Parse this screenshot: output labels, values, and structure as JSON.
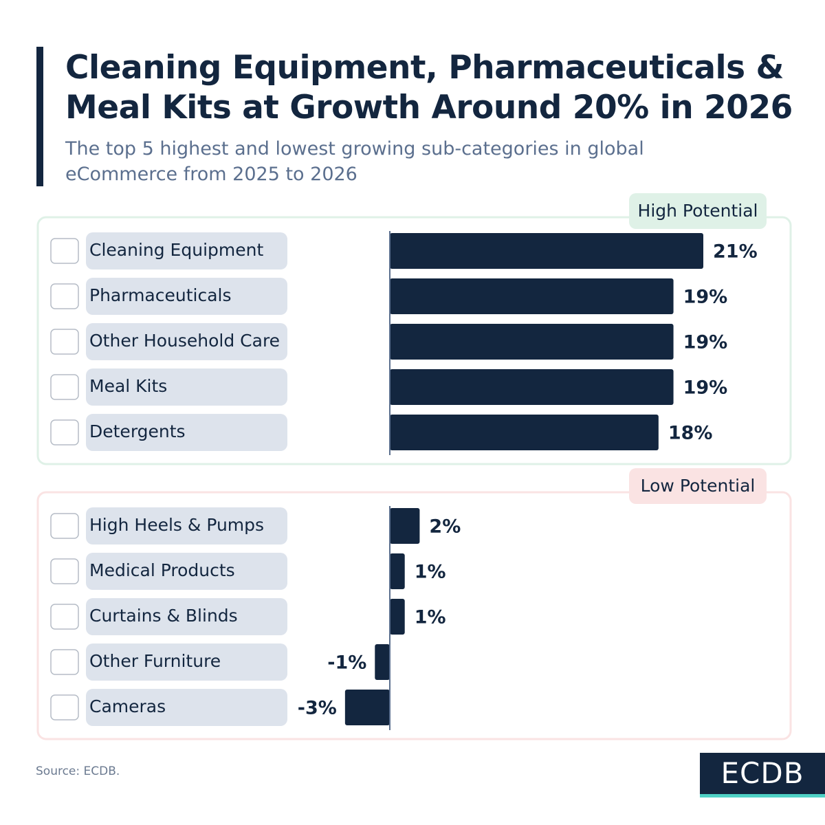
{
  "title": "Cleaning Equipment, Pharmaceuticals & Meal Kits at Growth Around 20% in 2026",
  "subtitle": "The top 5 highest and lowest growing sub-categories in global eCommerce from 2025 to 2026",
  "source": "Source: ECDB.",
  "logo": "ECDB",
  "chart_data": [
    {
      "type": "bar",
      "orientation": "horizontal",
      "label": "High Potential",
      "color": "#13263f",
      "panel_color": "#dff1e7",
      "categories": [
        "Cleaning Equipment",
        "Pharmaceuticals",
        "Other Household Care",
        "Meal Kits",
        "Detergents"
      ],
      "values": [
        21,
        19,
        19,
        19,
        18
      ],
      "value_labels": [
        "21%",
        "19%",
        "19%",
        "19%",
        "18%"
      ]
    },
    {
      "type": "bar",
      "orientation": "horizontal",
      "label": "Low Potential",
      "color": "#13263f",
      "panel_color": "#fae3e3",
      "categories": [
        "High Heels & Pumps",
        "Medical Products",
        "Curtains & Blinds",
        "Other Furniture",
        "Cameras"
      ],
      "values": [
        2,
        1,
        1,
        -1,
        -3
      ],
      "value_labels": [
        "2%",
        "1%",
        "1%",
        "-1%",
        "-3%"
      ]
    }
  ]
}
